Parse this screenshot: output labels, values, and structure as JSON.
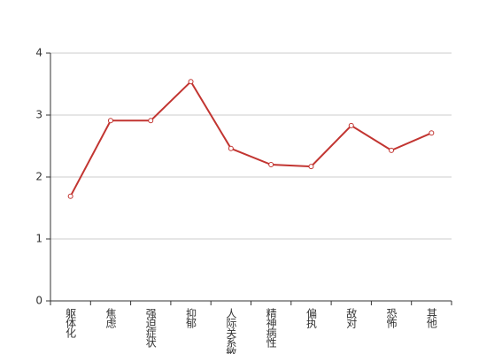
{
  "chart_data": {
    "type": "line",
    "categories": [
      "躯体化",
      "焦虑",
      "强迫症状",
      "抑郁",
      "人际关系敏感",
      "精神病性",
      "偏执",
      "敌对",
      "恐怖",
      "其他"
    ],
    "values": [
      1.69,
      2.91,
      2.91,
      3.54,
      2.46,
      2.2,
      2.17,
      2.83,
      2.43,
      2.71
    ],
    "color": "#c23531",
    "ylim": [
      0,
      4
    ],
    "yticks": [
      0,
      1,
      2,
      3,
      4
    ],
    "grid": true
  }
}
